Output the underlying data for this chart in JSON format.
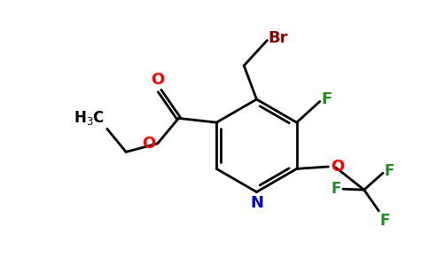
{
  "background_color": "#ffffff",
  "colors": {
    "Br": "#8b0000",
    "F": "#228b22",
    "N": "#0000cd",
    "O": "#ff0000",
    "C": "#000000"
  },
  "figsize": [
    4.84,
    3.0
  ],
  "dpi": 100,
  "lw": 2.0,
  "fs": 12
}
